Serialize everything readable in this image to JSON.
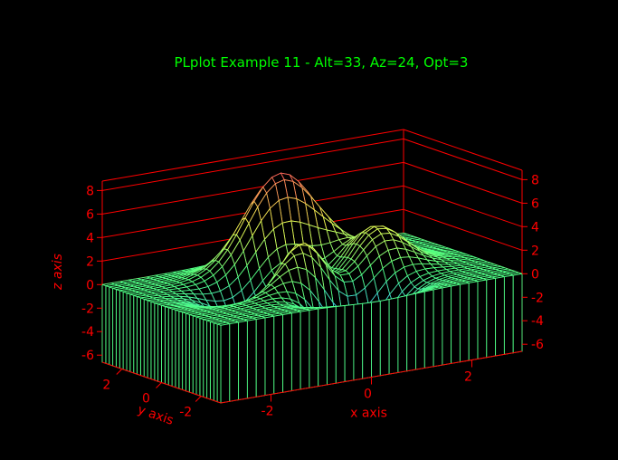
{
  "chart_data": {
    "type": "surface3d",
    "title": "PLplot Example 11 - Alt=33, Az=24, Opt=3",
    "xlabel": "x axis",
    "ylabel": "y axis",
    "zlabel": "z axis",
    "xlim": [
      -3,
      3
    ],
    "ylim": [
      -3,
      3
    ],
    "zlim": [
      -6.6,
      8.8
    ],
    "x_ticks": [
      "-2",
      "0",
      "2"
    ],
    "y_ticks": [
      "-2",
      "0",
      "2"
    ],
    "z_ticks": [
      "8",
      "6",
      "4",
      "2",
      "0",
      "-2",
      "-4",
      "-6"
    ],
    "z_tick_values": [
      8,
      6,
      4,
      2,
      0,
      -2,
      -4,
      -6
    ],
    "grid_size": [
      35,
      35
    ],
    "options": "mesh with magnitude coloring and base contours",
    "function": "3(1-x)^2 exp(-x^2-(y+1)^2) - 10(x/5-x^3-y^5) exp(-x^2-y^2) - 1/3 exp(-(x+1)^2-y^2)"
  },
  "colors": {
    "background": "#000000",
    "title": "#00ff00",
    "axes": "#ff0000",
    "labels": "#ff0000"
  }
}
